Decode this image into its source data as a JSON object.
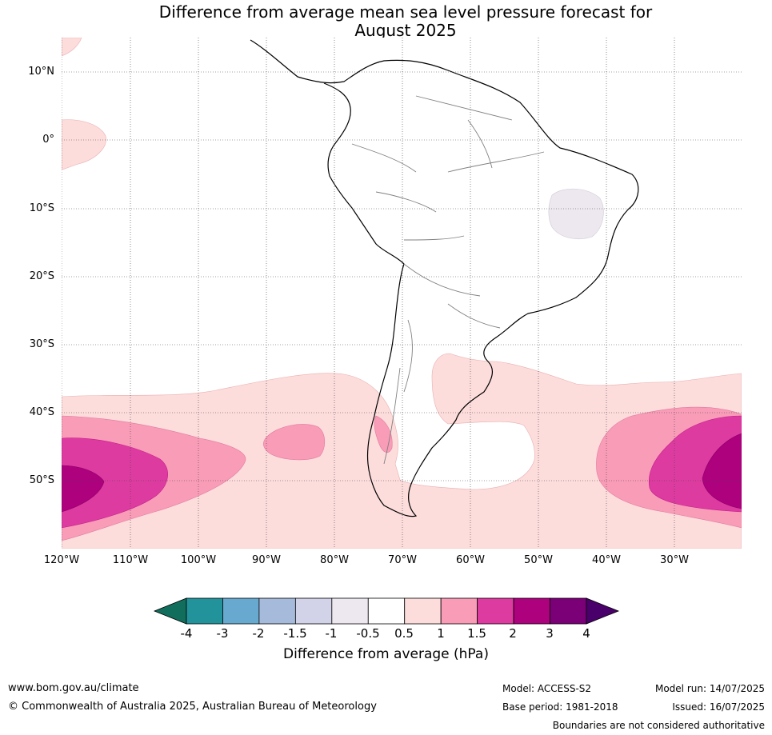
{
  "title_line1": "Difference from average mean sea level pressure forecast for",
  "title_line2": "August 2025",
  "latitude_labels": [
    "10°N",
    "0°",
    "10°S",
    "20°S",
    "30°S",
    "40°S",
    "50°S"
  ],
  "longitude_labels": [
    "120°W",
    "110°W",
    "100°W",
    "90°W",
    "80°W",
    "70°W",
    "60°W",
    "50°W",
    "40°W",
    "30°W"
  ],
  "colorbar": {
    "ticks": [
      "-4",
      "-3",
      "-2",
      "-1.5",
      "-1",
      "-0.5",
      "0.5",
      "1",
      "1.5",
      "2",
      "3",
      "4"
    ],
    "colors": [
      "#116e5c",
      "#23939b",
      "#67a9cf",
      "#a6bbdc",
      "#d2d3e8",
      "#ede8ef",
      "#ffffff",
      "#fddcdc",
      "#f99cb8",
      "#de3ba1",
      "#ad017e",
      "#7b0077",
      "#4a006a"
    ],
    "title": "Difference from average (hPa)"
  },
  "footer": {
    "website": "www.bom.gov.au/climate",
    "copyright": "© Commonwealth of Australia 2025, Australian Bureau of Meteorology",
    "model": "Model: ACCESS-S2",
    "base_period": "Base period: 1981-2018",
    "model_run": "Model run: 14/07/2025",
    "issued": "Issued: 16/07/2025",
    "disclaimer": "Boundaries are not considered authoritative"
  }
}
